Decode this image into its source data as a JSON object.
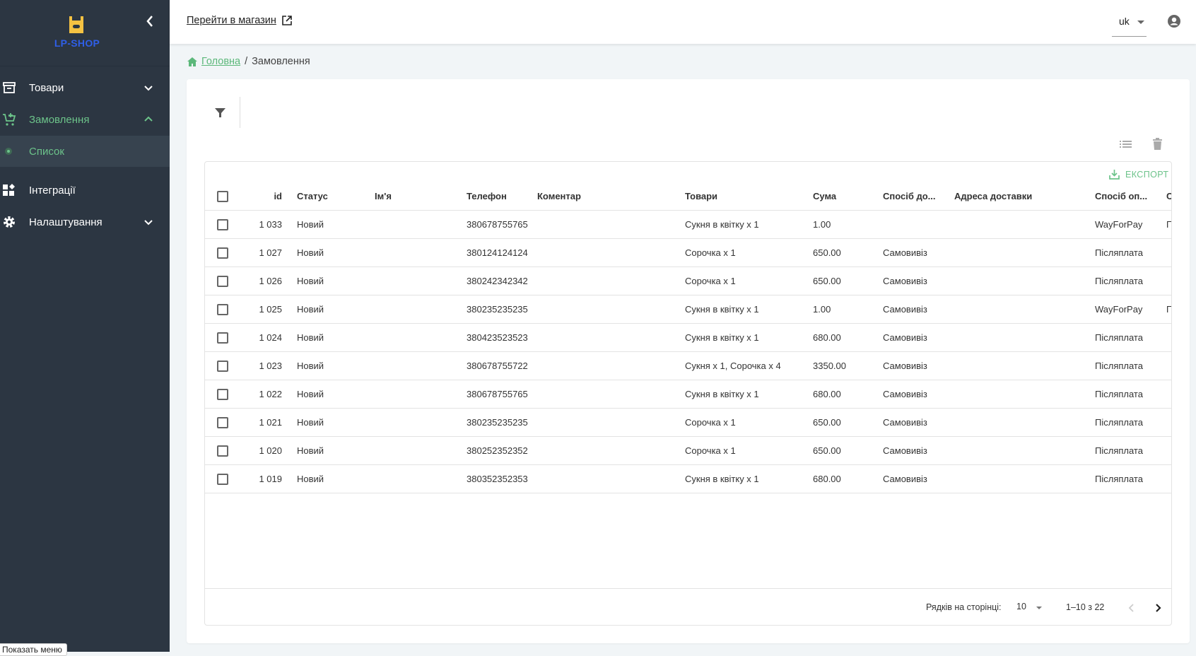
{
  "sidebar": {
    "logo_text": "LP-SHOP",
    "items": [
      {
        "label": "Товари",
        "icon": "archive-icon",
        "expanded": false
      },
      {
        "label": "Замовлення",
        "icon": "cart-icon",
        "expanded": true
      },
      {
        "label": "Список",
        "icon": "dot-icon",
        "active": true
      },
      {
        "label": "Інтеграції",
        "icon": "widgets-icon"
      },
      {
        "label": "Налаштування",
        "icon": "gear-icon",
        "expanded": false
      }
    ],
    "tooltip": "Показать меню"
  },
  "topbar": {
    "shop_link": "Перейти в магазин",
    "language": "uk"
  },
  "breadcrumb": {
    "home": "Головна",
    "separator": "/",
    "current": "Замовлення"
  },
  "toolbar": {
    "export_label": "ЕКСПОРТ"
  },
  "table": {
    "columns": [
      "id",
      "Статус",
      "Ім'я",
      "Телефон",
      "Коментар",
      "Товари",
      "Сума",
      "Спосіб до...",
      "Адреса доставки",
      "Спосіб оп...",
      "С"
    ],
    "rows": [
      [
        "1 033",
        "Новий",
        "",
        "380678755765",
        "",
        "Сукня в квітку x 1",
        "1.00",
        "",
        "",
        "WayForPay",
        "П"
      ],
      [
        "1 027",
        "Новий",
        "",
        "380124124124",
        "",
        "Сорочка x 1",
        "650.00",
        "Самовивіз",
        "",
        "Післяплата",
        ""
      ],
      [
        "1 026",
        "Новий",
        "",
        "380242342342",
        "",
        "Сорочка x 1",
        "650.00",
        "Самовивіз",
        "",
        "Післяплата",
        ""
      ],
      [
        "1 025",
        "Новий",
        "",
        "380235235235",
        "",
        "Сукня в квітку x 1",
        "1.00",
        "Самовивіз",
        "",
        "WayForPay",
        "П"
      ],
      [
        "1 024",
        "Новий",
        "",
        "380423523523",
        "",
        "Сукня в квітку x 1",
        "680.00",
        "Самовивіз",
        "",
        "Післяплата",
        ""
      ],
      [
        "1 023",
        "Новий",
        "",
        "380678755722",
        "",
        "Сукня x 1, Сорочка x 4",
        "3350.00",
        "Самовивіз",
        "",
        "Післяплата",
        ""
      ],
      [
        "1 022",
        "Новий",
        "",
        "380678755765",
        "",
        "Сукня в квітку x 1",
        "680.00",
        "Самовивіз",
        "",
        "Післяплата",
        ""
      ],
      [
        "1 021",
        "Новий",
        "",
        "380235235235",
        "",
        "Сорочка x 1",
        "650.00",
        "Самовивіз",
        "",
        "Післяплата",
        ""
      ],
      [
        "1 020",
        "Новий",
        "",
        "380252352352",
        "",
        "Сорочка x 1",
        "650.00",
        "Самовивіз",
        "",
        "Післяплата",
        ""
      ],
      [
        "1 019",
        "Новий",
        "",
        "380352352353",
        "",
        "Сукня в квітку x 1",
        "680.00",
        "Самовивіз",
        "",
        "Післяплата",
        ""
      ]
    ]
  },
  "pagination": {
    "rows_per_page_label": "Рядків на сторінці:",
    "rows_per_page": "10",
    "range": "1–10 з 22"
  },
  "colors": {
    "sidebar_bg": "#2c3642",
    "accent": "#6cc38a",
    "logo_blue": "#2f5fe8",
    "logo_yellow": "#f5c242"
  }
}
